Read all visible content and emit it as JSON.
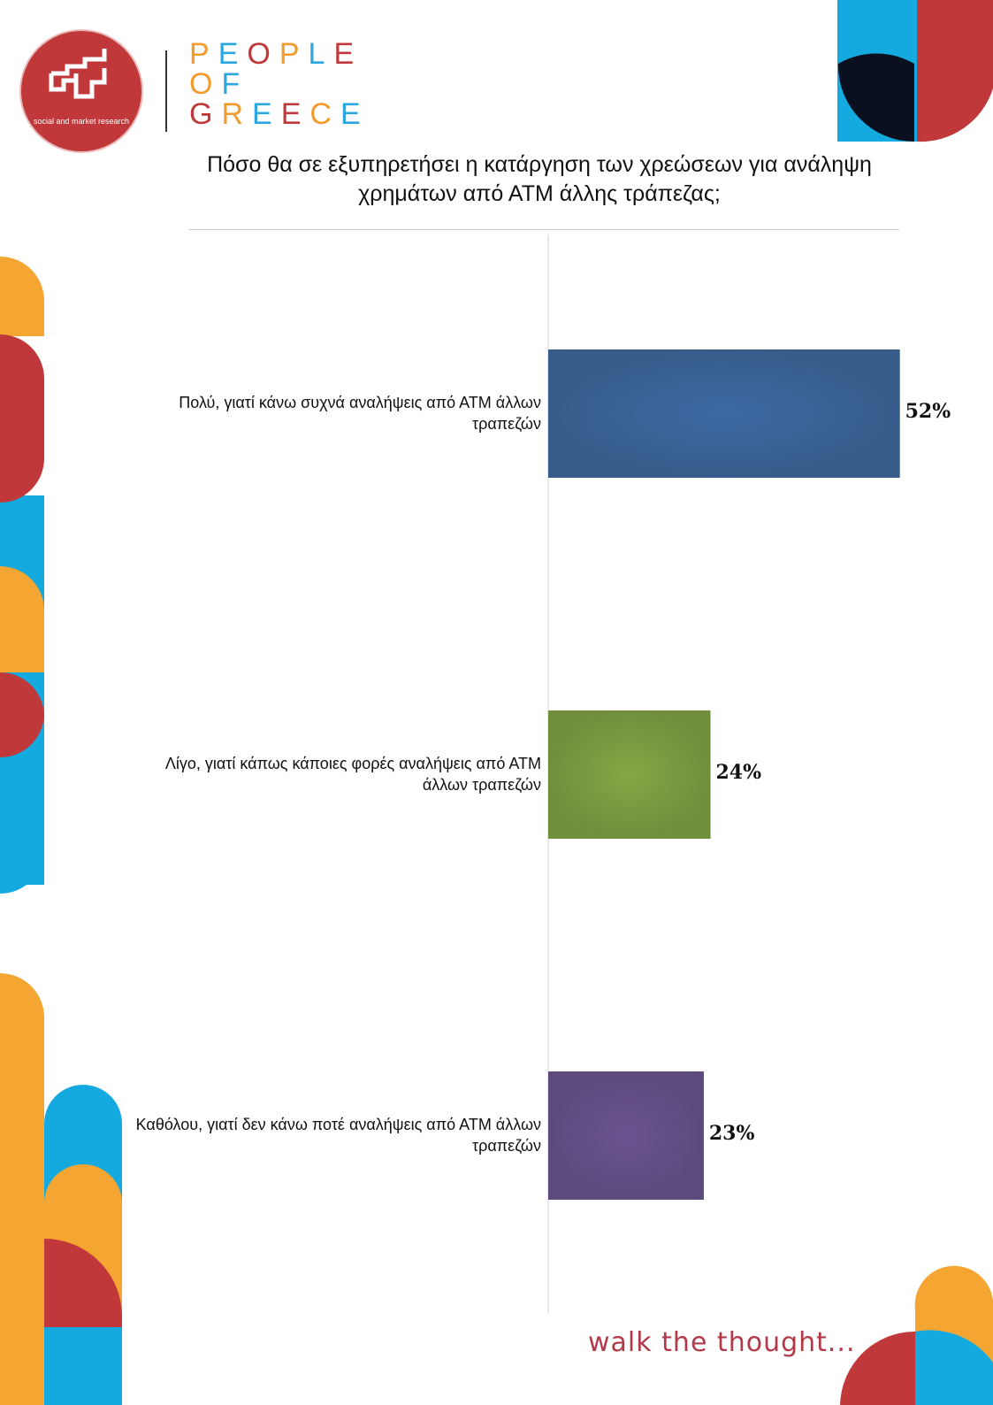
{
  "logo": {
    "tagline": "social and market research",
    "brand_lines": [
      "PEOPLE",
      "OF",
      "GREECE"
    ],
    "brand_colors": [
      "#f39c2b",
      "#2aa7e0",
      "#c0383a",
      "#f39c2b",
      "#2aa7e0",
      "#c0383a"
    ]
  },
  "footer": {
    "slogan": "walk the thought..."
  },
  "chart_data": {
    "type": "bar",
    "orientation": "horizontal",
    "title": "Πόσο θα σε εξυπηρετήσει η κατάργηση των χρεώσεων για ανάληψη χρημάτων από ΑΤΜ άλλης τράπεζας;",
    "categories": [
      "Πολύ, γιατί κάνω συχνά αναλήψεις από ΑΤΜ άλλων τραπεζών",
      "Λίγο, γιατί κάπως κάποιες φορές αναλήψεις από ΑΤΜ άλλων τραπεζών",
      "Καθόλου, γιατί δεν κάνω ποτέ αναλήψεις από ΑΤΜ άλλων τραπεζών"
    ],
    "values": [
      52,
      24,
      23
    ],
    "value_labels": [
      "52%",
      "24%",
      "23%"
    ],
    "bar_colors": [
      "#3d6aa3",
      "#83a844",
      "#6a5491"
    ],
    "xlim": [
      0,
      65
    ],
    "grid": false,
    "legend": "none"
  }
}
